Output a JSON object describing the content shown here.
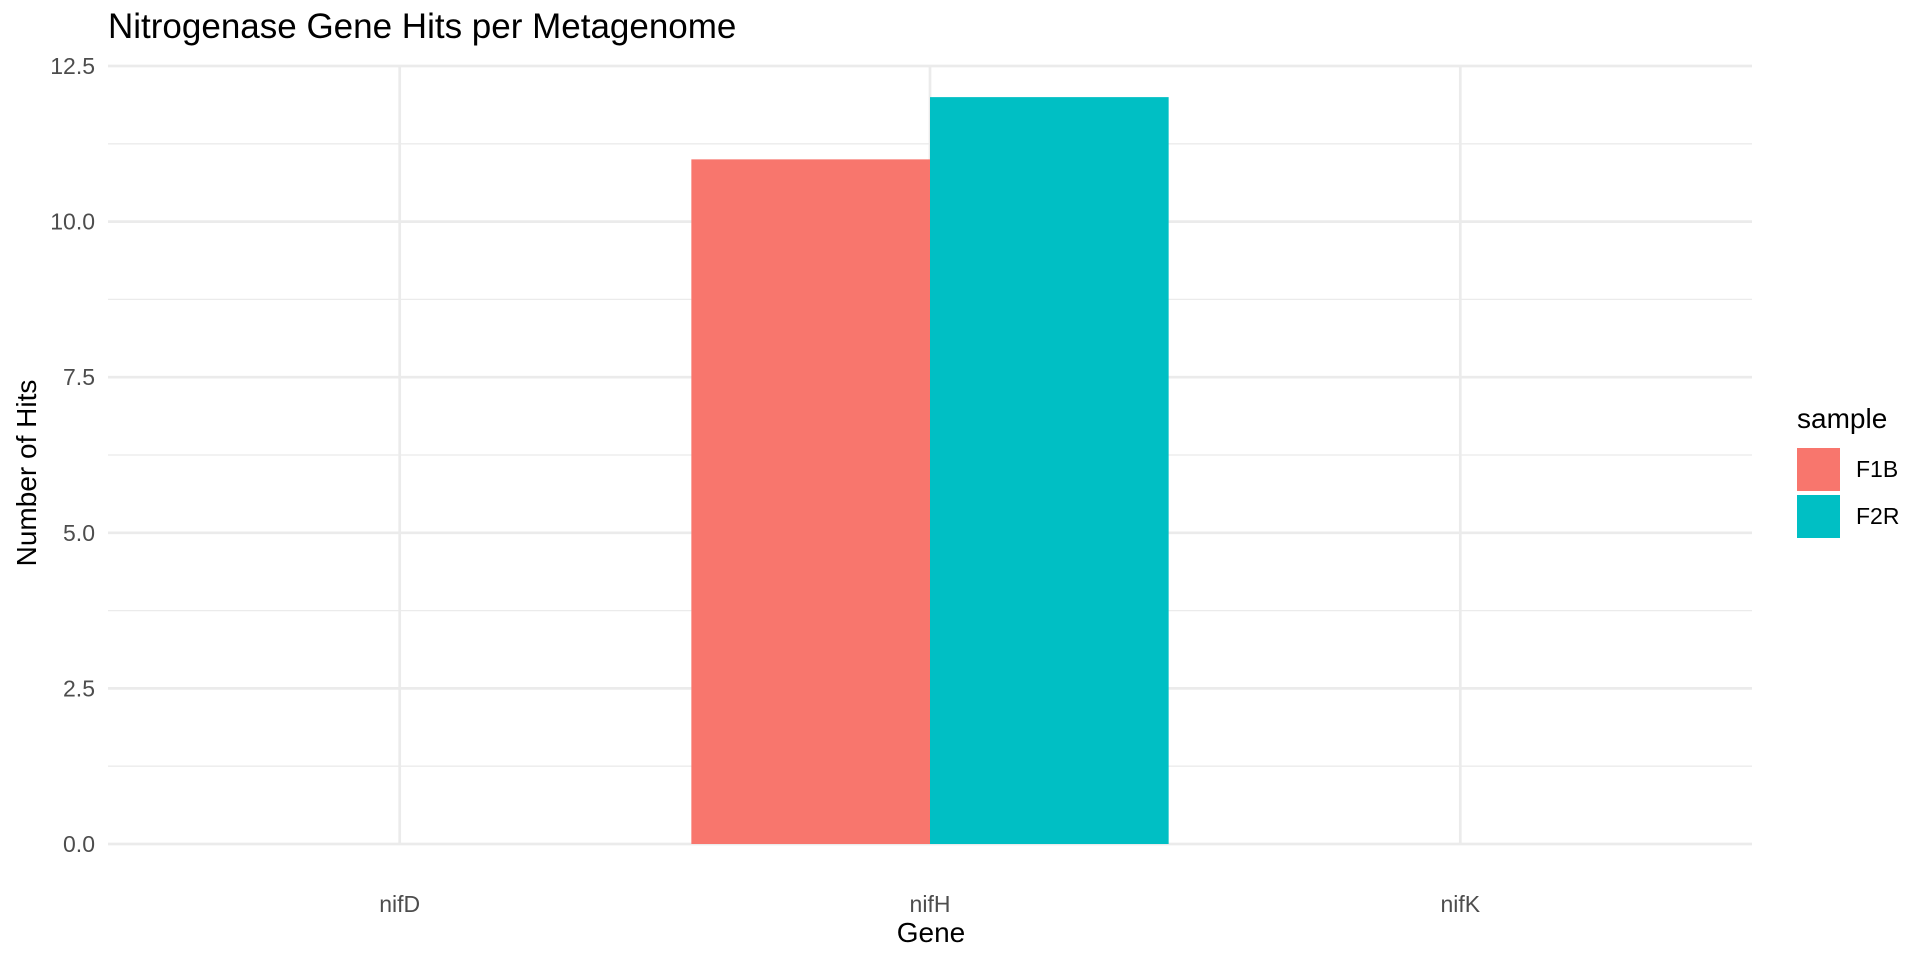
{
  "chart_data": {
    "type": "bar",
    "title": "Nitrogenase Gene Hits per Metagenome",
    "xlabel": "Gene",
    "ylabel": "Number of Hits",
    "categories": [
      "nifD",
      "nifH",
      "nifK"
    ],
    "series": [
      {
        "name": "F1B",
        "color": "#F8766D",
        "values": [
          null,
          11,
          null
        ]
      },
      {
        "name": "F2R",
        "color": "#00BFC4",
        "values": [
          null,
          12,
          null
        ]
      }
    ],
    "ylim": [
      0,
      12.5
    ],
    "yticks": [
      0,
      2.5,
      5,
      7.5,
      10,
      12.5
    ],
    "ytick_labels": [
      "0.0",
      "2.5",
      "5.0",
      "7.5",
      "10.0",
      "12.5"
    ],
    "grid": true,
    "legend": {
      "title": "sample",
      "position": "right"
    }
  }
}
